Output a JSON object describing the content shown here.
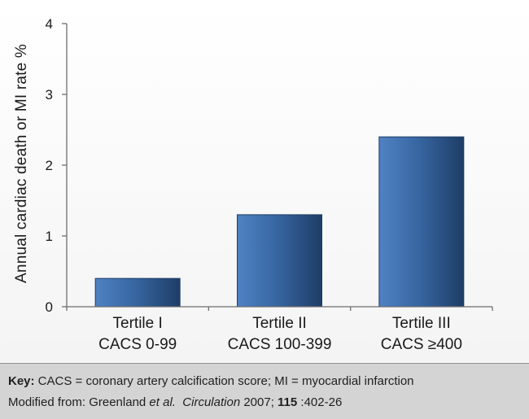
{
  "chart_data": {
    "type": "bar",
    "categories": [
      [
        "Tertile I",
        "CACS 0-99"
      ],
      [
        "Tertile II",
        "CACS 100-399"
      ],
      [
        "Tertile III",
        "CACS ≥400"
      ]
    ],
    "values": [
      0.4,
      1.3,
      2.4
    ],
    "xlabel": "",
    "ylabel": "Annual cardiac death or MI rate %",
    "ylim": [
      0,
      4
    ],
    "yticks": [
      "0",
      "1",
      "2",
      "3",
      "4"
    ],
    "grid": false,
    "colors": {
      "bar_light": "#4f82c2",
      "bar_mid": "#3867a3",
      "bar_dark": "#1e3d66",
      "axis": "#6e6e6e"
    }
  },
  "footer": {
    "key_label": "Key:",
    "key_text": " CACS = coronary artery calcification score; MI = myocardial infarction",
    "source_prefix": "Modified from: Greenland ",
    "source_etal": "et al.",
    "source_journal": "Circulation",
    "source_year": " 2007; ",
    "source_volume": "115",
    "source_pages": ":402-26"
  }
}
